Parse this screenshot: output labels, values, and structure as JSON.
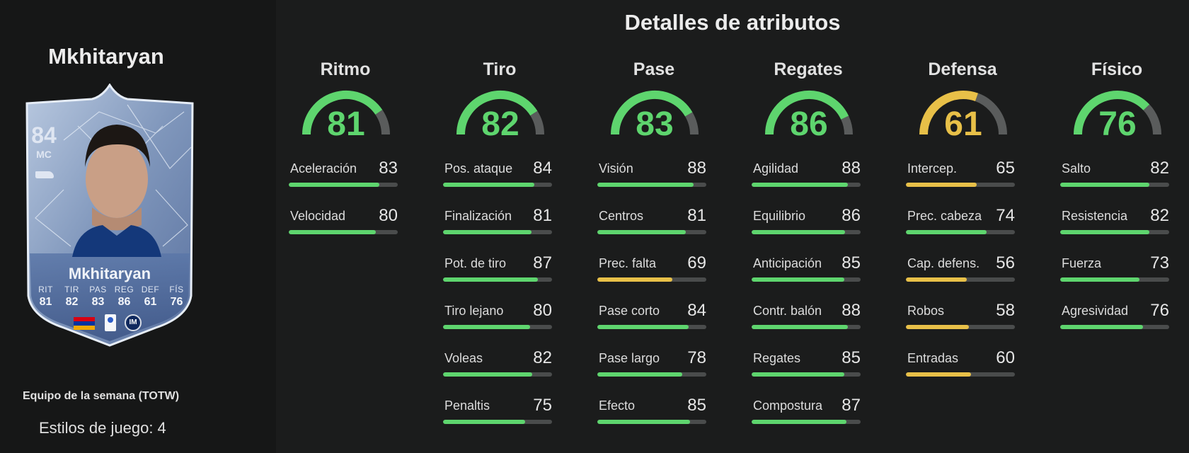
{
  "player": {
    "name": "Mkhitaryan",
    "card": {
      "rating": "84",
      "position": "MC",
      "name": "Mkhitaryan",
      "club_badge_text": "IM",
      "stats": [
        {
          "label": "RIT",
          "value": "81"
        },
        {
          "label": "TIR",
          "value": "82"
        },
        {
          "label": "PAS",
          "value": "83"
        },
        {
          "label": "REG",
          "value": "86"
        },
        {
          "label": "DEF",
          "value": "61"
        },
        {
          "label": "FÍS",
          "value": "76"
        }
      ]
    },
    "card_type": "Equipo de la semana (TOTW)",
    "playstyles": "Estilos de juego: 4"
  },
  "colors": {
    "green": "#5ed56e",
    "yellow": "#e8c048",
    "track": "#4a4c4c"
  },
  "section_title": "Detalles de atributos",
  "categories": [
    {
      "name": "Ritmo",
      "value": "81",
      "color": "green",
      "stats": [
        {
          "name": "Aceleración",
          "value": "83"
        },
        {
          "name": "Velocidad",
          "value": "80"
        }
      ]
    },
    {
      "name": "Tiro",
      "value": "82",
      "color": "green",
      "stats": [
        {
          "name": "Pos. ataque",
          "value": "84"
        },
        {
          "name": "Finalización",
          "value": "81"
        },
        {
          "name": "Pot. de tiro",
          "value": "87"
        },
        {
          "name": "Tiro lejano",
          "value": "80"
        },
        {
          "name": "Voleas",
          "value": "82"
        },
        {
          "name": "Penaltis",
          "value": "75"
        }
      ]
    },
    {
      "name": "Pase",
      "value": "83",
      "color": "green",
      "stats": [
        {
          "name": "Visión",
          "value": "88"
        },
        {
          "name": "Centros",
          "value": "81"
        },
        {
          "name": "Prec. falta",
          "value": "69"
        },
        {
          "name": "Pase corto",
          "value": "84"
        },
        {
          "name": "Pase largo",
          "value": "78"
        },
        {
          "name": "Efecto",
          "value": "85"
        }
      ]
    },
    {
      "name": "Regates",
      "value": "86",
      "color": "green",
      "stats": [
        {
          "name": "Agilidad",
          "value": "88"
        },
        {
          "name": "Equilibrio",
          "value": "86"
        },
        {
          "name": "Anticipación",
          "value": "85"
        },
        {
          "name": "Contr. balón",
          "value": "88"
        },
        {
          "name": "Regates",
          "value": "85"
        },
        {
          "name": "Compostura",
          "value": "87"
        }
      ]
    },
    {
      "name": "Defensa",
      "value": "61",
      "color": "yellow",
      "stats": [
        {
          "name": "Intercep.",
          "value": "65"
        },
        {
          "name": "Prec. cabeza",
          "value": "74"
        },
        {
          "name": "Cap. defens.",
          "value": "56"
        },
        {
          "name": "Robos",
          "value": "58"
        },
        {
          "name": "Entradas",
          "value": "60"
        }
      ]
    },
    {
      "name": "Físico",
      "value": "76",
      "color": "green",
      "stats": [
        {
          "name": "Salto",
          "value": "82"
        },
        {
          "name": "Resistencia",
          "value": "82"
        },
        {
          "name": "Fuerza",
          "value": "73"
        },
        {
          "name": "Agresividad",
          "value": "76"
        }
      ]
    }
  ]
}
